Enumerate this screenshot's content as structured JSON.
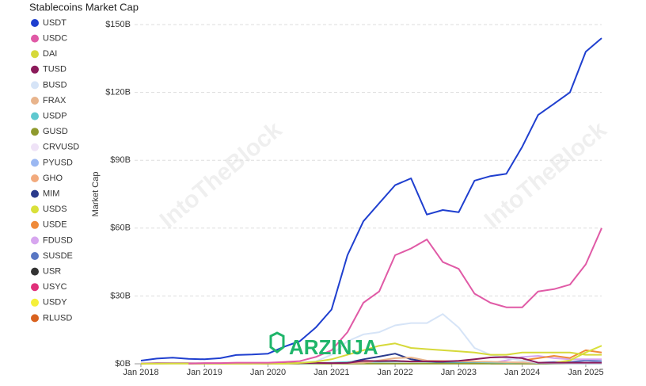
{
  "chart_data": {
    "type": "line",
    "title": "Stablecoins Market Cap",
    "y_label": "Market Cap",
    "watermarks": [
      "IntoTheBlock",
      "IntoTheBlock"
    ],
    "logo_text": "ARZINJA",
    "x": [
      "Jan 2018",
      "Apr 2018",
      "Jul 2018",
      "Oct 2018",
      "Jan 2019",
      "Apr 2019",
      "Jul 2019",
      "Oct 2019",
      "Jan 2020",
      "Apr 2020",
      "Jul 2020",
      "Oct 2020",
      "Jan 2021",
      "Apr 2021",
      "Jul 2021",
      "Oct 2021",
      "Jan 2022",
      "Apr 2022",
      "Jul 2022",
      "Oct 2022",
      "Jan 2023",
      "Apr 2023",
      "Jul 2023",
      "Oct 2023",
      "Jan 2024",
      "Apr 2024",
      "Jul 2024",
      "Oct 2024",
      "Jan 2025",
      "Apr 2025"
    ],
    "xticks": [
      "Jan 2018",
      "Jan 2019",
      "Jan 2020",
      "Jan 2021",
      "Jan 2022",
      "Jan 2023",
      "Jan 2024",
      "Jan 2025"
    ],
    "ylim": [
      0,
      150
    ],
    "yticks": [
      {
        "value": 0,
        "label": "$0B"
      },
      {
        "value": 30,
        "label": "$30B"
      },
      {
        "value": 60,
        "label": "$60B"
      },
      {
        "value": 90,
        "label": "$90B"
      },
      {
        "value": 120,
        "label": "$120B"
      },
      {
        "value": 150,
        "label": "$150B"
      }
    ],
    "grid": true,
    "series": [
      {
        "name": "USDT",
        "color": "#1f3fcf",
        "values": [
          1.4,
          2.3,
          2.7,
          2.2,
          2.0,
          2.5,
          3.9,
          4.1,
          4.5,
          7.5,
          10,
          16,
          24,
          48,
          63,
          71,
          79,
          82,
          66,
          68,
          67,
          81,
          83,
          84,
          96,
          110,
          115,
          120,
          138,
          144
        ]
      },
      {
        "name": "USDC",
        "color": "#e05aa6",
        "values": [
          null,
          null,
          null,
          0.1,
          0.3,
          0.3,
          0.5,
          0.5,
          0.5,
          0.8,
          1.2,
          3,
          6,
          14,
          27,
          32,
          48,
          51,
          55,
          45,
          42,
          31,
          27,
          25,
          25,
          32,
          33,
          35,
          44,
          60
        ]
      },
      {
        "name": "DAI",
        "color": "#d6d93a",
        "values": [
          0.05,
          0.05,
          0.06,
          0.07,
          0.08,
          0.08,
          0.09,
          0.1,
          0.1,
          0.1,
          0.4,
          0.9,
          2,
          4,
          6,
          8,
          9,
          7,
          6.5,
          6,
          5.5,
          5,
          4,
          4,
          5,
          5,
          5,
          5,
          4,
          4
        ]
      },
      {
        "name": "TUSD",
        "color": "#8b1a5a",
        "values": [
          0.1,
          0.2,
          0.2,
          0.2,
          0.2,
          0.2,
          0.2,
          0.2,
          0.15,
          0.3,
          0.3,
          0.4,
          0.3,
          0.4,
          1.3,
          1.2,
          1.3,
          1.0,
          1.1,
          1.0,
          1.3,
          2,
          2.8,
          3,
          2.5,
          0.5,
          0.5,
          0.5,
          0.5,
          0.5
        ]
      },
      {
        "name": "BUSD",
        "color": "#d6e4f7",
        "values": [
          null,
          null,
          null,
          null,
          null,
          null,
          null,
          0.1,
          0.2,
          0.3,
          0.5,
          1,
          4,
          10,
          13,
          14,
          17,
          18,
          18,
          22,
          16,
          7,
          4,
          2.5,
          1.5,
          0.5,
          0.2,
          0.1,
          0.1,
          0.1
        ]
      },
      {
        "name": "FRAX",
        "color": "#e8b48c",
        "values": [
          null,
          null,
          null,
          null,
          null,
          null,
          null,
          null,
          null,
          null,
          null,
          null,
          0.2,
          0.4,
          0.5,
          1.5,
          2.5,
          2.8,
          1.4,
          1.3,
          1.1,
          1,
          0.9,
          0.7,
          0.6,
          0.5,
          0.4,
          0.3,
          0.3,
          0.3
        ]
      },
      {
        "name": "USDP",
        "color": "#5fc8cf",
        "values": [
          null,
          null,
          null,
          null,
          null,
          null,
          null,
          null,
          null,
          null,
          0.2,
          0.3,
          0.5,
          0.8,
          0.9,
          0.9,
          1,
          1,
          0.9,
          0.9,
          0.8,
          0.8,
          0.6,
          0.5,
          0.6,
          0.3,
          0.2,
          0.2,
          0.1,
          0.1
        ]
      },
      {
        "name": "GUSD",
        "color": "#8f9a2e",
        "values": [
          null,
          null,
          null,
          0.1,
          0.1,
          0.1,
          0.1,
          0.1,
          0.1,
          0.1,
          0.1,
          0.1,
          0.1,
          0.1,
          0.1,
          0.1,
          0.1,
          0.1,
          0.1,
          0.1,
          0.1,
          0.1,
          0.1,
          0.1,
          0.1,
          0.1,
          0.1,
          0.1,
          0.1,
          0.1
        ]
      },
      {
        "name": "CRVUSD",
        "color": "#efe3f7",
        "values": [
          null,
          null,
          null,
          null,
          null,
          null,
          null,
          null,
          null,
          null,
          null,
          null,
          null,
          null,
          null,
          null,
          null,
          null,
          null,
          null,
          null,
          null,
          null,
          0.05,
          0.1,
          0.15,
          0.2,
          0.1,
          0.1,
          0.1
        ]
      },
      {
        "name": "PYUSD",
        "color": "#9bb8f2",
        "values": [
          null,
          null,
          null,
          null,
          null,
          null,
          null,
          null,
          null,
          null,
          null,
          null,
          null,
          null,
          null,
          null,
          null,
          null,
          null,
          null,
          null,
          null,
          0.1,
          0.3,
          0.3,
          0.4,
          0.4,
          0.5,
          0.5,
          0.8
        ]
      },
      {
        "name": "GHO",
        "color": "#f2aa7d",
        "values": [
          null,
          null,
          null,
          null,
          null,
          null,
          null,
          null,
          null,
          null,
          null,
          null,
          null,
          null,
          null,
          null,
          null,
          null,
          null,
          null,
          null,
          null,
          0.05,
          0.05,
          0.05,
          0.1,
          0.1,
          0.2,
          0.2,
          0.2
        ]
      },
      {
        "name": "MIM",
        "color": "#2a3a8c",
        "values": [
          null,
          null,
          null,
          null,
          null,
          null,
          null,
          null,
          null,
          null,
          null,
          null,
          null,
          0.5,
          2,
          3.2,
          4.5,
          2,
          1,
          0.5,
          0.4,
          0.3,
          0.2,
          0.2,
          0.1,
          0.1,
          0.1,
          0.1,
          0.1,
          0.1
        ]
      },
      {
        "name": "USDS",
        "color": "#d9e03a",
        "values": [
          null,
          null,
          null,
          null,
          null,
          null,
          null,
          null,
          null,
          null,
          null,
          null,
          null,
          null,
          null,
          null,
          null,
          null,
          null,
          null,
          null,
          null,
          null,
          null,
          null,
          null,
          0.5,
          1.5,
          5,
          8
        ]
      },
      {
        "name": "USDE",
        "color": "#ef8a3a",
        "values": [
          null,
          null,
          null,
          null,
          null,
          null,
          null,
          null,
          null,
          null,
          null,
          null,
          null,
          null,
          null,
          null,
          null,
          null,
          null,
          null,
          null,
          null,
          null,
          null,
          1.5,
          2.5,
          3.5,
          2.6,
          6,
          5
        ]
      },
      {
        "name": "FDUSD",
        "color": "#d7a6ef",
        "values": [
          null,
          null,
          null,
          null,
          null,
          null,
          null,
          null,
          null,
          null,
          null,
          null,
          null,
          null,
          null,
          null,
          null,
          null,
          null,
          null,
          null,
          null,
          0.3,
          1.5,
          3,
          3.5,
          2.5,
          2,
          2,
          2
        ]
      },
      {
        "name": "SUSDE",
        "color": "#5a78c4",
        "values": [
          null,
          null,
          null,
          null,
          null,
          null,
          null,
          null,
          null,
          null,
          null,
          null,
          null,
          null,
          null,
          null,
          null,
          null,
          null,
          null,
          null,
          null,
          null,
          null,
          0.3,
          0.5,
          0.8,
          0.8,
          1.5,
          1.2
        ]
      },
      {
        "name": "USR",
        "color": "#333333",
        "values": [
          null,
          null,
          null,
          null,
          null,
          null,
          null,
          null,
          null,
          null,
          null,
          null,
          null,
          null,
          null,
          null,
          null,
          null,
          null,
          null,
          null,
          null,
          null,
          null,
          null,
          null,
          null,
          null,
          0.1,
          0.2
        ]
      },
      {
        "name": "USYC",
        "color": "#e0307a",
        "values": [
          null,
          null,
          null,
          null,
          null,
          null,
          null,
          null,
          null,
          null,
          null,
          null,
          null,
          null,
          null,
          null,
          null,
          null,
          null,
          null,
          null,
          null,
          null,
          null,
          null,
          null,
          0.2,
          0.3,
          0.5,
          0.7
        ]
      },
      {
        "name": "USDY",
        "color": "#f5f03a",
        "values": [
          null,
          null,
          null,
          null,
          null,
          null,
          null,
          null,
          null,
          null,
          null,
          null,
          null,
          null,
          null,
          null,
          null,
          null,
          null,
          null,
          null,
          null,
          null,
          null,
          null,
          0.2,
          0.3,
          0.4,
          0.5,
          0.6
        ]
      },
      {
        "name": "RLUSD",
        "color": "#d9621f",
        "values": [
          null,
          null,
          null,
          null,
          null,
          null,
          null,
          null,
          null,
          null,
          null,
          null,
          null,
          null,
          null,
          null,
          null,
          null,
          null,
          null,
          null,
          null,
          null,
          null,
          null,
          null,
          null,
          null,
          0.05,
          0.1
        ]
      }
    ]
  }
}
